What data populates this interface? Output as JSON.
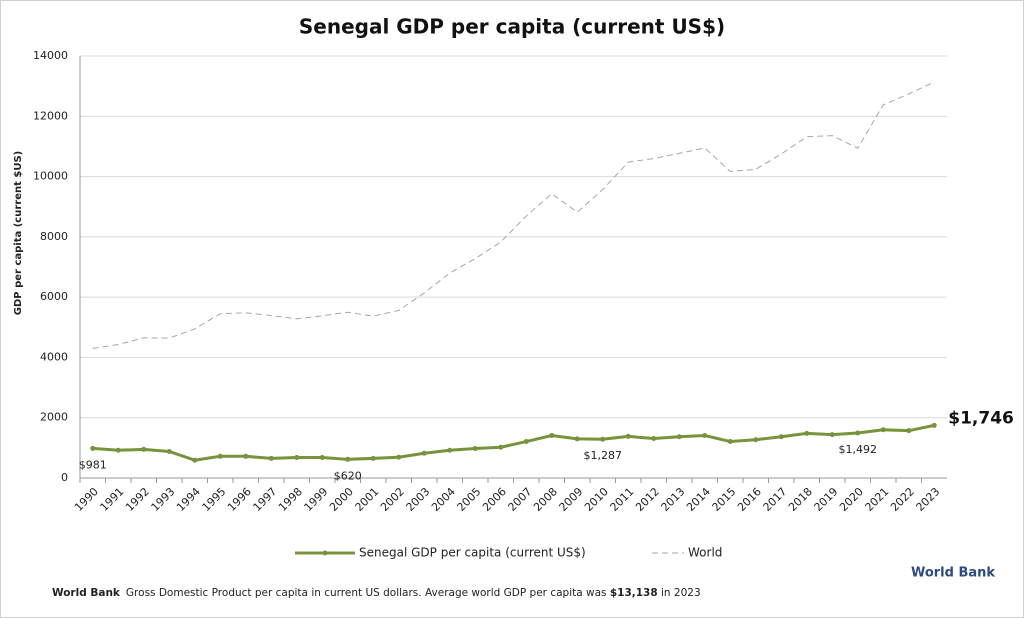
{
  "chart_data": {
    "type": "line",
    "title": "Senegal GDP per capita (current US$)",
    "ylabel": "GDP per capita (current $US)",
    "categories": [
      "1990",
      "1991",
      "1992",
      "1993",
      "1994",
      "1995",
      "1996",
      "1997",
      "1998",
      "1999",
      "2000",
      "2001",
      "2002",
      "2003",
      "2004",
      "2005",
      "2006",
      "2007",
      "2008",
      "2009",
      "2010",
      "2011",
      "2012",
      "2013",
      "2014",
      "2015",
      "2016",
      "2017",
      "2018",
      "2019",
      "2020",
      "2021",
      "2022",
      "2023"
    ],
    "series": [
      {
        "name": "Senegal GDP per capita (current US$)",
        "color": "#77933c",
        "style": "solid",
        "markers": true,
        "values": [
          981,
          920,
          950,
          880,
          590,
          720,
          720,
          650,
          680,
          680,
          620,
          650,
          690,
          820,
          920,
          980,
          1020,
          1210,
          1410,
          1300,
          1287,
          1380,
          1310,
          1370,
          1410,
          1210,
          1270,
          1370,
          1480,
          1440,
          1492,
          1600,
          1570,
          1746
        ],
        "value_labels": [
          "$981",
          null,
          null,
          null,
          null,
          null,
          null,
          null,
          null,
          null,
          "$620",
          null,
          null,
          null,
          null,
          null,
          null,
          null,
          null,
          null,
          "$1,287",
          null,
          null,
          null,
          null,
          null,
          null,
          null,
          null,
          null,
          "$1,492",
          null,
          null,
          "$1,746"
        ]
      },
      {
        "name": "World",
        "color": "#a6a6a6",
        "style": "dashed",
        "markers": false,
        "values": [
          4300,
          4430,
          4650,
          4640,
          4950,
          5450,
          5480,
          5390,
          5280,
          5380,
          5500,
          5370,
          5560,
          6140,
          6800,
          7280,
          7830,
          8690,
          9430,
          8820,
          9570,
          10480,
          10600,
          10770,
          10950,
          10170,
          10240,
          10750,
          11320,
          11360,
          10940,
          12380,
          12740,
          13138
        ]
      }
    ],
    "ylim": [
      0,
      14000
    ],
    "yticks": [
      0,
      2000,
      4000,
      6000,
      8000,
      10000,
      12000,
      14000
    ],
    "grid": true,
    "legend": "bottom"
  },
  "footer": {
    "source": "World Bank",
    "text": "Gross Domestic Product per capita in current US dollars.  Average world GDP per capita was ",
    "highlight": "$13,138",
    "tail": " in 2023"
  },
  "logo": "World Bank"
}
